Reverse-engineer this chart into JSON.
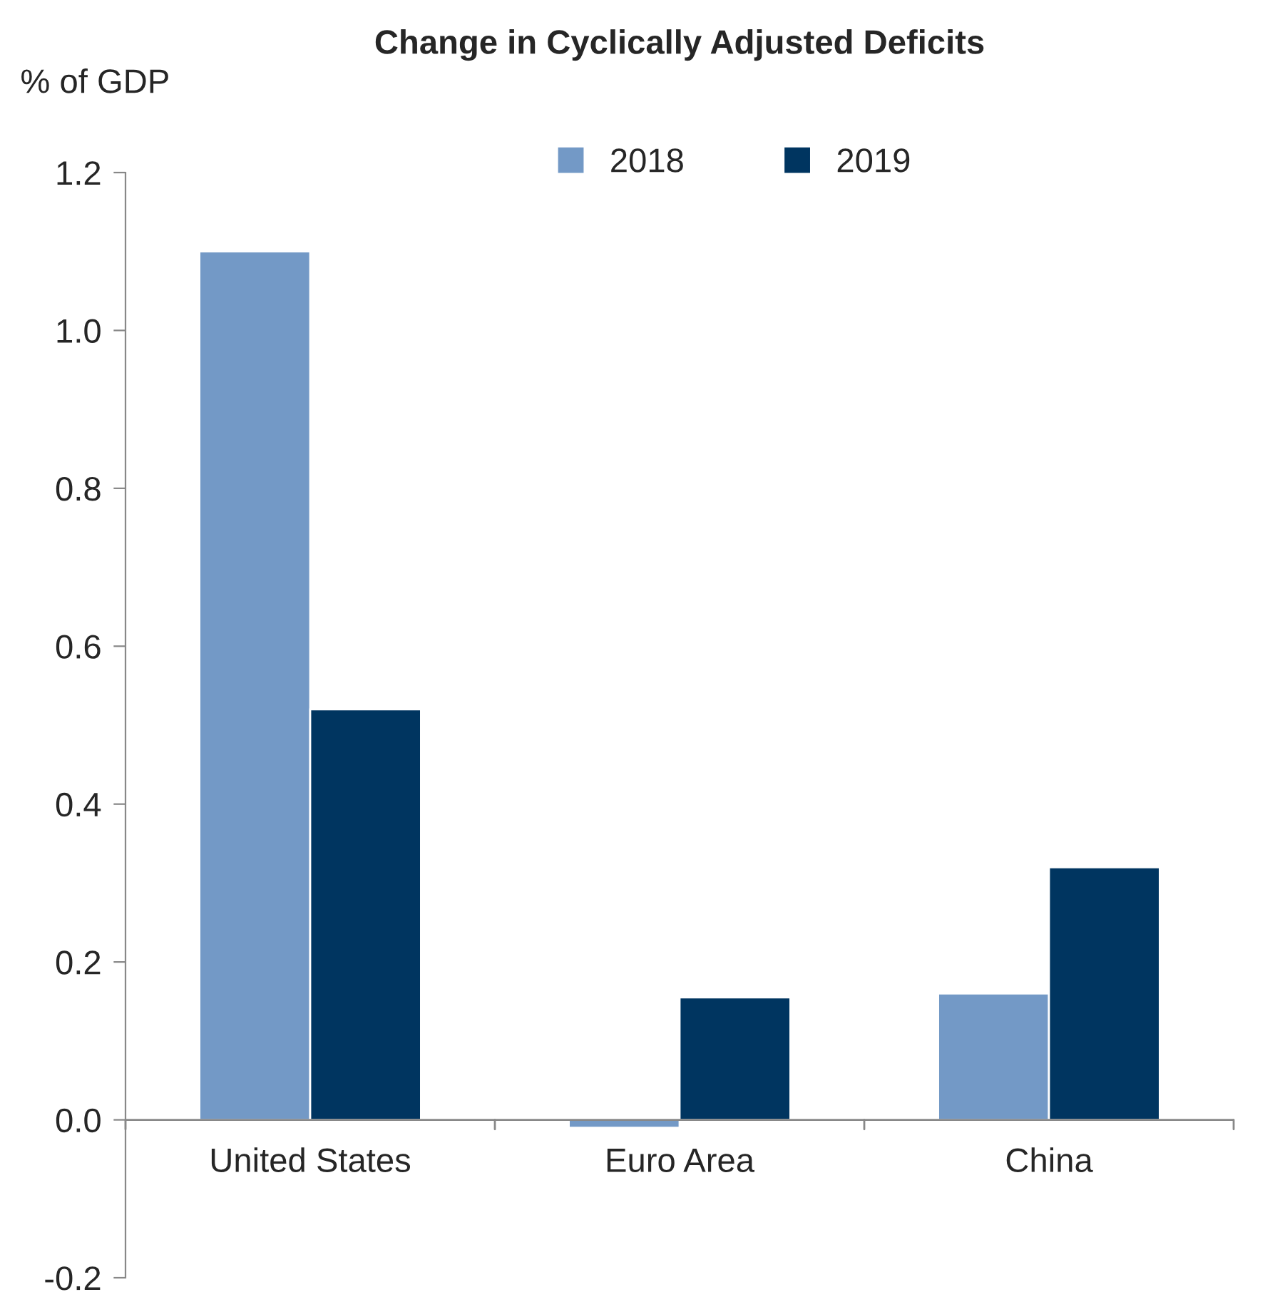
{
  "chart_data": {
    "type": "bar",
    "title": "Change in Cyclically Adjusted Deficits",
    "ylabel": "% of GDP",
    "categories": [
      "United States",
      "Euro Area",
      "China"
    ],
    "series": [
      {
        "name": "2018",
        "color": "#7399c6",
        "values": [
          1.1,
          -0.01,
          0.16
        ]
      },
      {
        "name": "2019",
        "color": "#003560",
        "values": [
          0.52,
          0.155,
          0.32
        ]
      }
    ],
    "ylim": [
      -0.2,
      1.2
    ],
    "yticks": [
      {
        "value": -0.2,
        "label": "-0.2"
      },
      {
        "value": 0.0,
        "label": "0.0"
      },
      {
        "value": 0.2,
        "label": "0.2"
      },
      {
        "value": 0.4,
        "label": "0.4"
      },
      {
        "value": 0.6,
        "label": "0.6"
      },
      {
        "value": 0.8,
        "label": "0.8"
      },
      {
        "value": 1.0,
        "label": "1.0"
      },
      {
        "value": 1.2,
        "label": "1.2"
      }
    ],
    "grid": false,
    "legend": "top"
  }
}
